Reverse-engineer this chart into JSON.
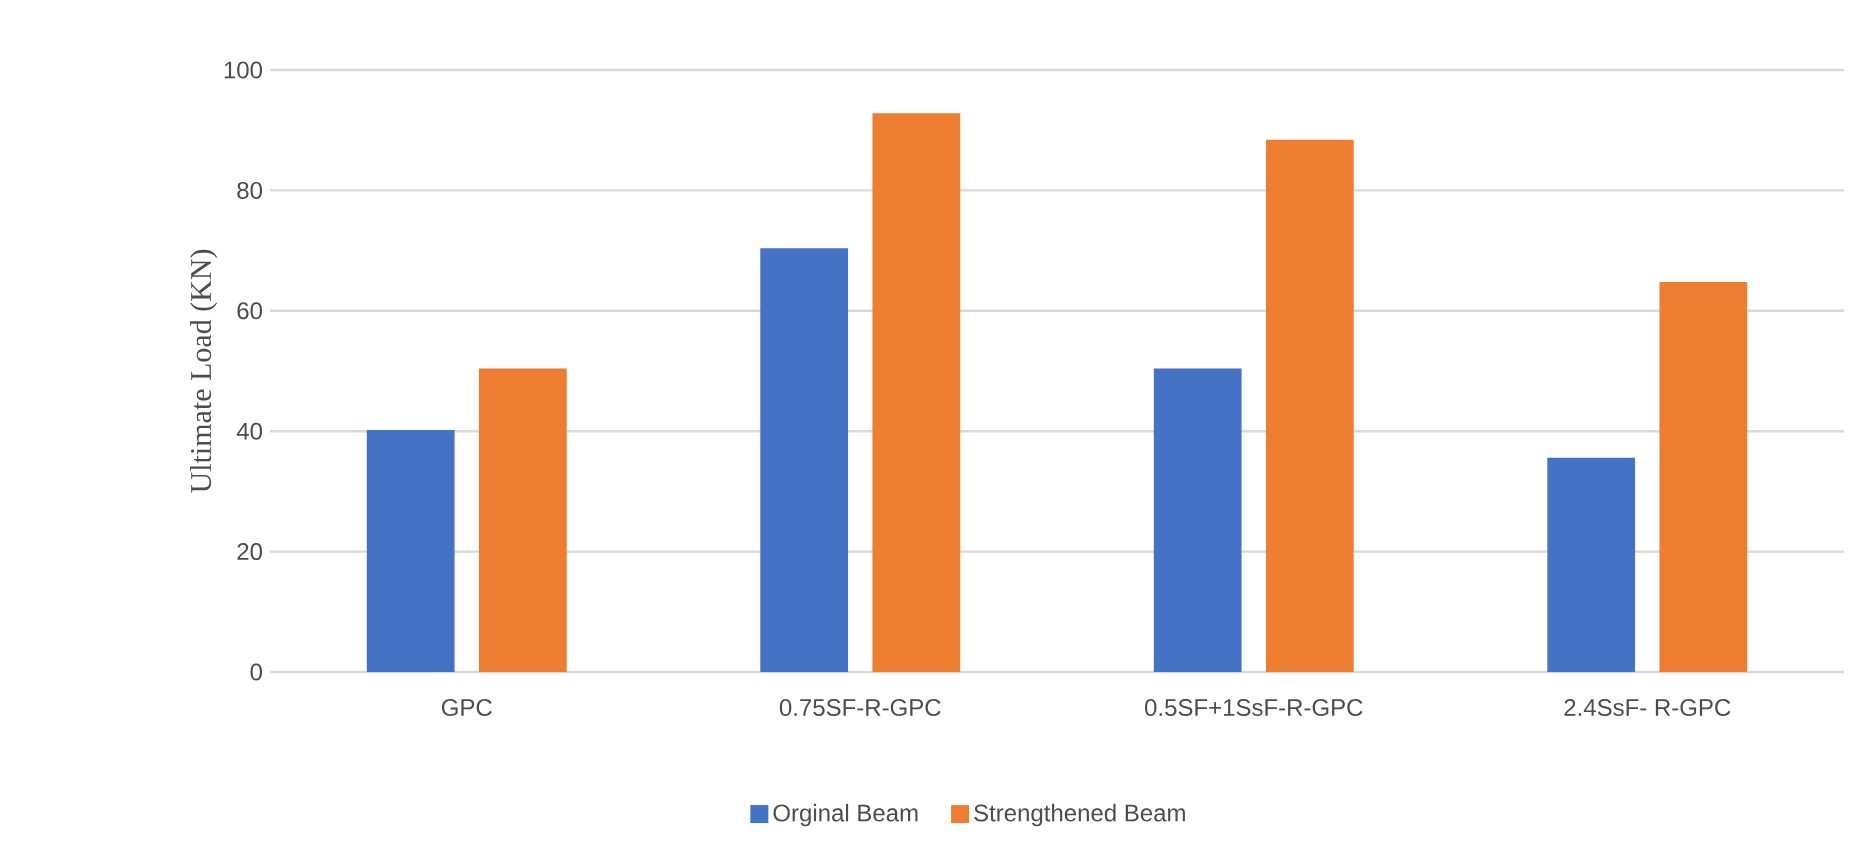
{
  "chart_data": {
    "type": "bar",
    "ylabel": "Ultimate Load (KN)",
    "categories": [
      "GPC",
      "0.75SF-R-GPC",
      "0.5SF+1SsF-R-GPC",
      "2.4SsF- R-GPC"
    ],
    "series": [
      {
        "name": "Orginal Beam",
        "color": "#4472c4",
        "values": [
          40.2,
          70.4,
          50.4,
          35.6
        ]
      },
      {
        "name": "Strengthened Beam",
        "color": "#ed7d31",
        "values": [
          50.4,
          92.8,
          88.4,
          64.8
        ]
      }
    ],
    "ylim": [
      0,
      100
    ],
    "yticks": [
      0,
      20,
      40,
      60,
      80,
      100
    ],
    "grid": "y",
    "legend": "bottom"
  }
}
